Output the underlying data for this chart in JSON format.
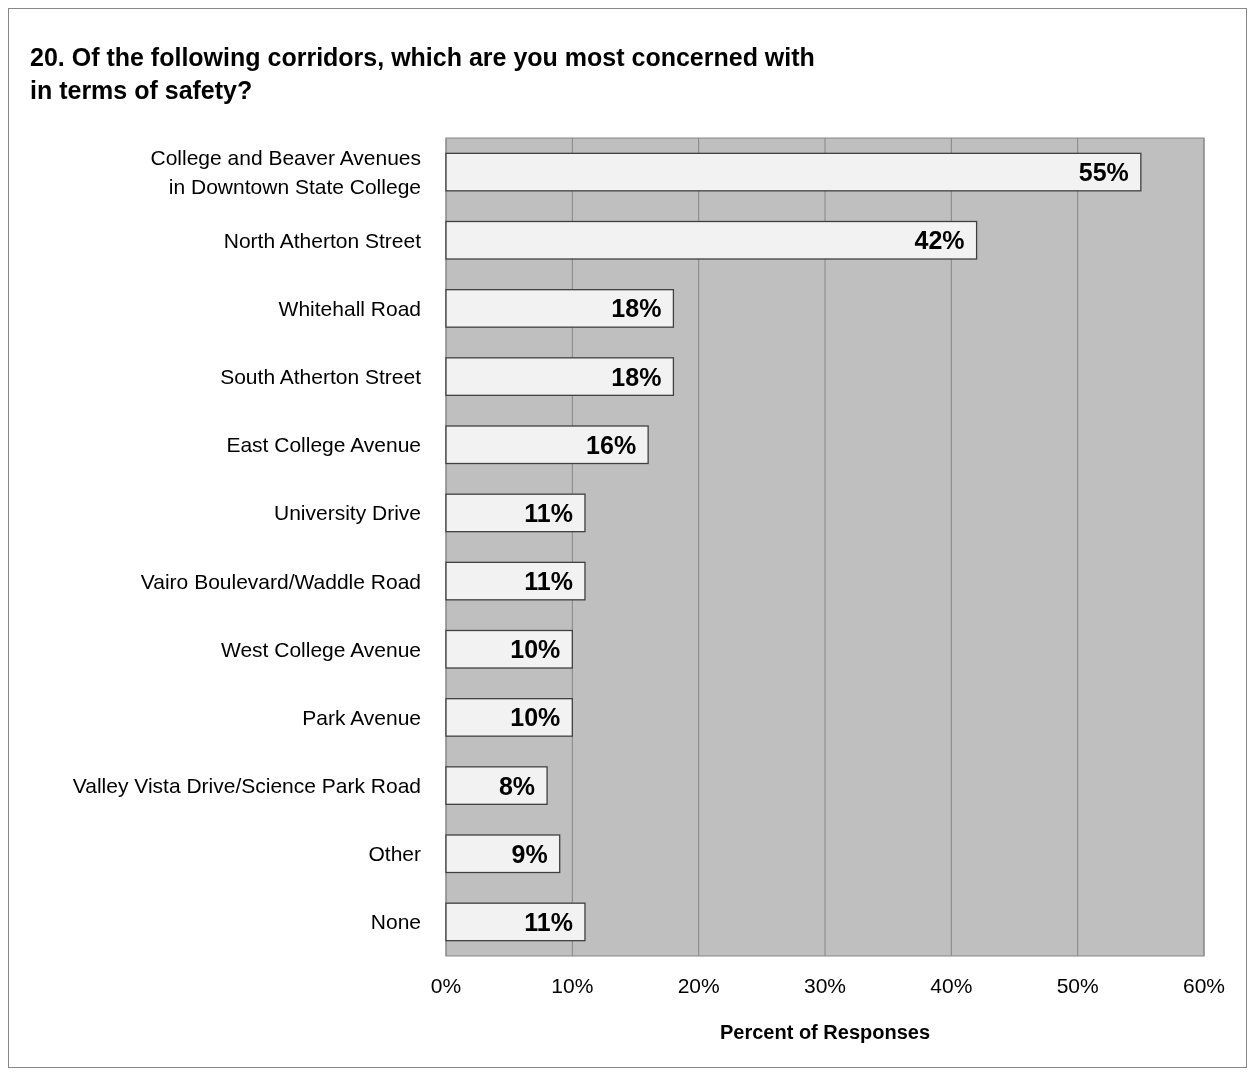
{
  "chart_data": {
    "type": "bar",
    "orientation": "horizontal",
    "title": "20. Of the following corridors, which are you most concerned with in terms of safety?",
    "xlabel": "Percent of Responses",
    "categories": [
      "College and Beaver Avenues\nin Downtown State College",
      "North Atherton Street",
      "Whitehall Road",
      "South Atherton Street",
      "East College Avenue",
      "University Drive",
      "Vairo Boulevard/Waddle Road",
      "West College Avenue",
      "Park Avenue",
      "Valley Vista Drive/Science Park Road",
      "Other",
      "None"
    ],
    "values": [
      55,
      42,
      18,
      18,
      16,
      11,
      11,
      10,
      10,
      8,
      9,
      11
    ],
    "value_labels": [
      "55%",
      "42%",
      "18%",
      "18%",
      "16%",
      "11%",
      "11%",
      "10%",
      "10%",
      "8%",
      "9%",
      "11%"
    ],
    "color": "#f2f2f2",
    "xlim": [
      0,
      60
    ],
    "xticks": [
      {
        "value": 0,
        "label": "0%"
      },
      {
        "value": 10,
        "label": "10%"
      },
      {
        "value": 20,
        "label": "20%"
      },
      {
        "value": 30,
        "label": "30%"
      },
      {
        "value": 40,
        "label": "40%"
      },
      {
        "value": 50,
        "label": "50%"
      },
      {
        "value": 60,
        "label": "60%"
      }
    ],
    "grid": "x"
  }
}
